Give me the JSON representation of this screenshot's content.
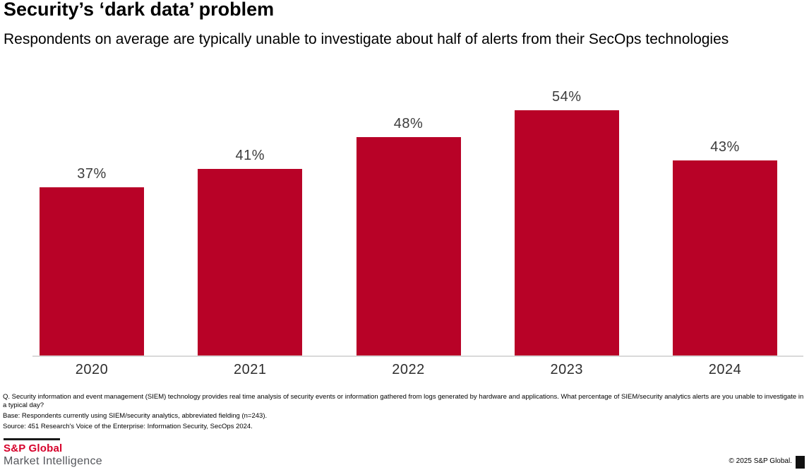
{
  "header": {
    "title": "Security’s ‘dark data’ problem",
    "subtitle": "Respondents on average are typically unable to investigate about half of alerts from their SecOps technologies"
  },
  "chart_data": {
    "type": "bar",
    "title": "Security’s ‘dark data’ problem",
    "subtitle": "Respondents on average are typically unable to investigate about half of alerts from their SecOps technologies",
    "categories": [
      "2020",
      "2021",
      "2022",
      "2023",
      "2024"
    ],
    "values": [
      37,
      41,
      48,
      54,
      43
    ],
    "value_suffix": "%",
    "value_labels": [
      "37%",
      "41%",
      "48%",
      "54%",
      "43%"
    ],
    "xlabel": "",
    "ylabel": "",
    "ylim": [
      0,
      60
    ],
    "unit": "percent",
    "bar_color": "#b80227",
    "grid": false,
    "legend": false,
    "value_labels_position": "above-bars"
  },
  "footnotes": {
    "question": "Q. Security information and event management (SIEM) technology provides real time analysis of security events or information gathered from logs generated by hardware and applications. What percentage of SIEM/security analytics alerts are you unable to investigate in a typical day?",
    "base": "Base: Respondents currently using SIEM/security analytics, abbreviated fielding (n=243).",
    "source": "Source: 451 Research's Voice of the Enterprise: Information Security, SecOps 2024."
  },
  "footer": {
    "logo_line1": "S&P Global",
    "logo_line2": "Market Intelligence",
    "copyright": "© 2025 S&P Global.",
    "brand_red": "#d6002a"
  }
}
